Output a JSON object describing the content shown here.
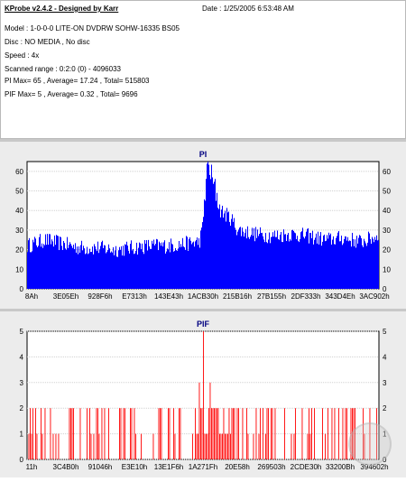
{
  "header": {
    "title": "KProbe v2.4.2 - Designed by Karr",
    "date": "Date : 1/25/2005 6:53:48 AM",
    "lines": [
      "Model : 1-0-0-0 LITE-ON DVDRW SOHW-16335 BS05",
      "Disc : NO MEDIA , No disc",
      "Speed : 4x",
      "Scanned range : 0:2:0 (0) - 4096033",
      "PI Max= 65 , Average= 17.24 , Total= 515803",
      "PIF Max= 5 , Average= 0.32 , Total= 9696"
    ]
  },
  "colors": {
    "pi": "#0000ff",
    "pif": "#ff0000",
    "title": "#000080",
    "background": "#ffffff"
  },
  "chart_data": [
    {
      "type": "bar",
      "title": "PI",
      "ylim": [
        0,
        65
      ],
      "yticks": [
        0,
        10,
        20,
        30,
        40,
        50,
        60
      ],
      "xticklabels": [
        "8Ah",
        "3E05Eh",
        "928F6h",
        "E7313h",
        "143E43h",
        "1ACB30h",
        "215B16h",
        "27B155h",
        "2DF333h",
        "343D4Eh",
        "3AC902h"
      ],
      "profile": [
        [
          0,
          22
        ],
        [
          0.05,
          25
        ],
        [
          0.1,
          23
        ],
        [
          0.15,
          21
        ],
        [
          0.2,
          21
        ],
        [
          0.25,
          20
        ],
        [
          0.3,
          21
        ],
        [
          0.35,
          22
        ],
        [
          0.4,
          22
        ],
        [
          0.45,
          23
        ],
        [
          0.49,
          24
        ],
        [
          0.5,
          32
        ],
        [
          0.51,
          55
        ],
        [
          0.52,
          58
        ],
        [
          0.53,
          50
        ],
        [
          0.55,
          40
        ],
        [
          0.58,
          36
        ],
        [
          0.6,
          30
        ],
        [
          0.65,
          28
        ],
        [
          0.7,
          27
        ],
        [
          0.75,
          28
        ],
        [
          0.8,
          27
        ],
        [
          0.85,
          25
        ],
        [
          0.9,
          26
        ],
        [
          0.95,
          24
        ],
        [
          1.0,
          27
        ]
      ],
      "max": 65,
      "average": 17.24,
      "total": 515803,
      "grid": true
    },
    {
      "type": "bar",
      "title": "PIF",
      "ylim": [
        0,
        5
      ],
      "yticks": [
        0,
        1,
        2,
        3,
        4,
        5
      ],
      "xticklabels": [
        "11h",
        "3C4B0h",
        "91046h",
        "E3E10h",
        "13E1F6h",
        "1A271Fh",
        "20E58h",
        "269503h",
        "2CDE30h",
        "33200Bh",
        "394602h"
      ],
      "profile": [
        [
          0,
          0.6
        ],
        [
          0.1,
          0.5
        ],
        [
          0.2,
          0.5
        ],
        [
          0.3,
          0.4
        ],
        [
          0.4,
          0.4
        ],
        [
          0.45,
          0.4
        ],
        [
          0.48,
          0.7
        ],
        [
          0.5,
          1.8
        ],
        [
          0.52,
          1.6
        ],
        [
          0.55,
          1.0
        ],
        [
          0.6,
          0.5
        ],
        [
          0.7,
          0.4
        ],
        [
          0.8,
          0.4
        ],
        [
          0.9,
          0.5
        ],
        [
          1.0,
          0.6
        ]
      ],
      "max": 5,
      "average": 0.32,
      "total": 9696,
      "grid": true
    }
  ]
}
